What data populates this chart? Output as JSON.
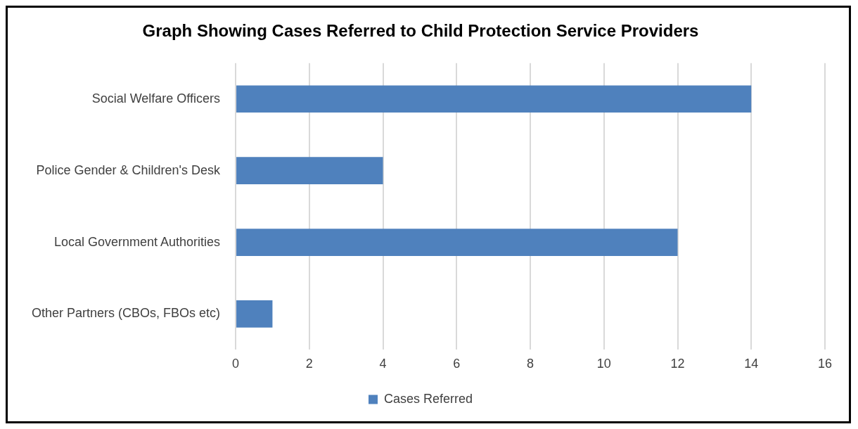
{
  "chart_data": {
    "type": "bar",
    "orientation": "horizontal",
    "title": "Graph Showing Cases Referred to Child Protection Service Providers",
    "categories": [
      "Social Welfare Officers",
      "Police Gender & Children's Desk",
      "Local Government Authorities",
      "Other Partners (CBOs, FBOs etc)"
    ],
    "series": [
      {
        "name": "Cases Referred",
        "color": "#4f81bd",
        "values": [
          14,
          4,
          12,
          1
        ]
      }
    ],
    "xlim": [
      0,
      16
    ],
    "xticks": [
      0,
      2,
      4,
      6,
      8,
      10,
      12,
      14,
      16
    ],
    "grid": "x",
    "legend": "bottom"
  }
}
